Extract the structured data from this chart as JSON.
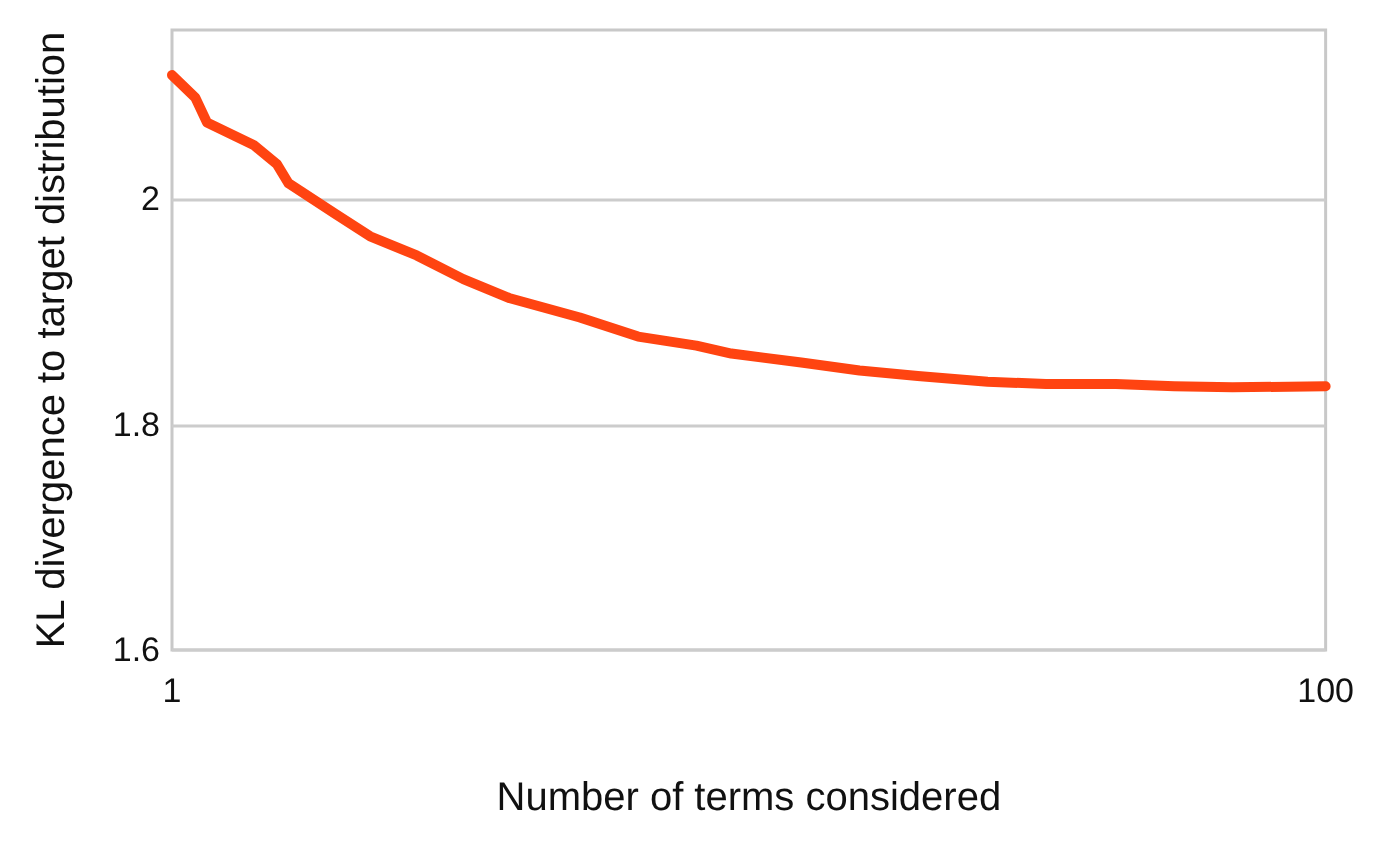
{
  "chart_data": {
    "type": "line",
    "xlabel": "Number of terms considered",
    "ylabel": "KL divergence to target distribution",
    "x": [
      1,
      3,
      4,
      8,
      10,
      11,
      15,
      18,
      22,
      26,
      30,
      36,
      41,
      46,
      49,
      55,
      60,
      65,
      71,
      76,
      82,
      87,
      92,
      100
    ],
    "series": [
      {
        "color": "#ff4411",
        "values": [
          2.11,
          2.09,
          2.068,
          2.048,
          2.031,
          2.014,
          1.987,
          1.967,
          1.95,
          1.929,
          1.912,
          1.895,
          1.878,
          1.87,
          1.863,
          1.855,
          1.848,
          1.843,
          1.838,
          1.836,
          1.836,
          1.834,
          1.833,
          1.834
        ]
      }
    ],
    "xlim": [
      1,
      100
    ],
    "xticks": [
      1,
      100
    ],
    "ylim": [
      1.6,
      2.15
    ],
    "yticks": [
      1.6,
      1.8,
      2
    ],
    "grid": "y",
    "marker": "none",
    "line_style": "solid"
  }
}
